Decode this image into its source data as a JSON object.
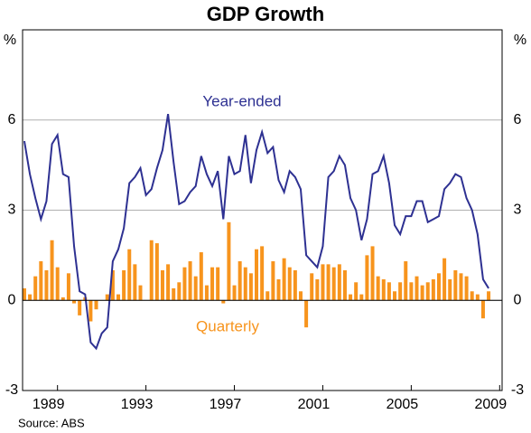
{
  "chart_data": {
    "type": "bar_line",
    "title": "GDP Growth",
    "y_unit": "%",
    "y2_unit": "%",
    "source": "Source: ABS",
    "x": [
      1987.5,
      1987.75,
      1988,
      1988.25,
      1988.5,
      1988.75,
      1989,
      1989.25,
      1989.5,
      1989.75,
      1990,
      1990.25,
      1990.5,
      1990.75,
      1991,
      1991.25,
      1991.5,
      1991.75,
      1992,
      1992.25,
      1992.5,
      1992.75,
      1993,
      1993.25,
      1993.5,
      1993.75,
      1994,
      1994.25,
      1994.5,
      1994.75,
      1995,
      1995.25,
      1995.5,
      1995.75,
      1996,
      1996.25,
      1996.5,
      1996.75,
      1997,
      1997.25,
      1997.5,
      1997.75,
      1998,
      1998.25,
      1998.5,
      1998.75,
      1999,
      1999.25,
      1999.5,
      1999.75,
      2000,
      2000.25,
      2000.5,
      2000.75,
      2001,
      2001.25,
      2001.5,
      2001.75,
      2002,
      2002.25,
      2002.5,
      2002.75,
      2003,
      2003.25,
      2003.5,
      2003.75,
      2004,
      2004.25,
      2004.5,
      2004.75,
      2005,
      2005.25,
      2005.5,
      2005.75,
      2006,
      2006.25,
      2006.5,
      2006.75,
      2007,
      2007.25,
      2007.5,
      2007.75,
      2008,
      2008.25,
      2008.5
    ],
    "series": [
      {
        "name": "Quarterly",
        "type": "bar",
        "color": "#f7941d",
        "values": [
          0.4,
          0.2,
          0.8,
          1.3,
          1.0,
          2.0,
          1.1,
          0.1,
          0.9,
          -0.1,
          -0.5,
          0.1,
          -0.7,
          -0.3,
          0.0,
          0.2,
          1.0,
          0.2,
          1.0,
          1.7,
          1.2,
          0.5,
          0.0,
          2.0,
          1.9,
          1.0,
          1.2,
          0.4,
          0.6,
          1.1,
          1.3,
          0.8,
          1.6,
          0.5,
          1.1,
          1.1,
          -0.1,
          2.6,
          0.5,
          1.3,
          1.1,
          0.9,
          1.7,
          1.8,
          0.3,
          1.3,
          0.7,
          1.4,
          1.1,
          1.0,
          0.3,
          -0.9,
          0.9,
          0.7,
          1.2,
          1.2,
          1.1,
          1.2,
          1.0,
          0.2,
          0.6,
          0.2,
          1.5,
          1.8,
          0.8,
          0.7,
          0.6,
          0.3,
          0.6,
          1.3,
          0.6,
          0.8,
          0.5,
          0.6,
          0.7,
          0.9,
          1.4,
          0.7,
          1.0,
          0.9,
          0.8,
          0.3,
          0.2,
          -0.6,
          0.3
        ]
      },
      {
        "name": "Year-ended",
        "type": "line",
        "color": "#2e3192",
        "values": [
          5.3,
          4.2,
          3.4,
          2.7,
          3.3,
          5.2,
          5.5,
          4.2,
          4.1,
          1.8,
          0.3,
          0.2,
          -1.4,
          -1.6,
          -1.1,
          -0.9,
          1.3,
          1.7,
          2.4,
          3.9,
          4.1,
          4.4,
          3.5,
          3.7,
          4.4,
          5.0,
          6.2,
          4.6,
          3.2,
          3.3,
          3.6,
          3.8,
          4.8,
          4.2,
          3.8,
          4.3,
          2.7,
          4.8,
          4.2,
          4.3,
          5.5,
          3.9,
          5.0,
          5.6,
          4.9,
          5.1,
          4.0,
          3.6,
          4.3,
          4.1,
          3.7,
          1.5,
          1.3,
          1.1,
          1.8,
          4.1,
          4.3,
          4.8,
          4.5,
          3.4,
          3.0,
          2.0,
          2.7,
          4.2,
          4.3,
          4.8,
          3.9,
          2.5,
          2.2,
          2.8,
          2.8,
          3.3,
          3.3,
          2.6,
          2.7,
          2.8,
          3.7,
          3.9,
          4.2,
          4.1,
          3.4,
          3.0,
          2.2,
          0.7,
          0.4
        ]
      }
    ],
    "xlim": [
      1987.42,
      2009.11
    ],
    "xticks": [
      1989,
      1993,
      1997,
      2001,
      2005,
      2009
    ],
    "ylim": [
      -3,
      9
    ],
    "yticks": [
      -3,
      0,
      3,
      6
    ],
    "y2lim": [
      -3,
      9
    ],
    "y2ticks": [
      -3,
      0,
      3,
      6
    ],
    "grid": true
  }
}
